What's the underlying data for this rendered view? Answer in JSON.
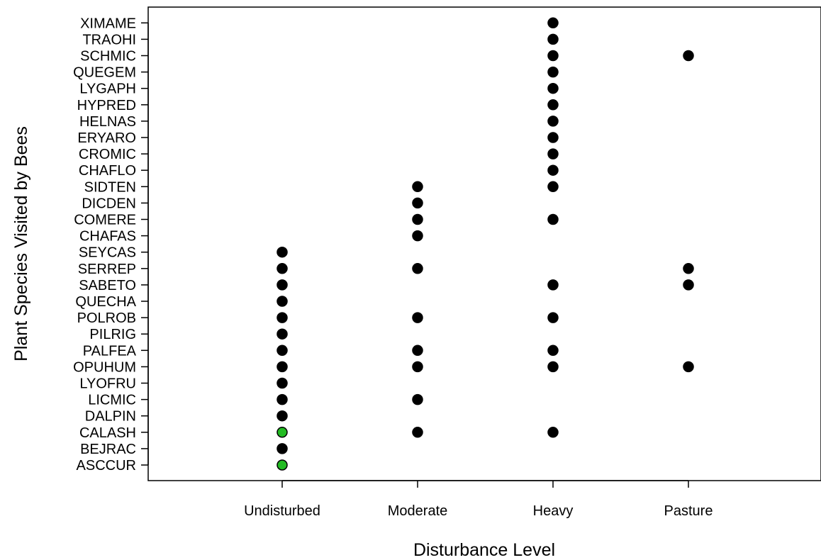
{
  "chart_data": {
    "type": "scatter",
    "title": "",
    "xlabel": "Disturbance Level",
    "ylabel": "Plant Species Visited by Bees",
    "x_categories": [
      "Undisturbed",
      "Moderate",
      "Heavy",
      "Pasture"
    ],
    "y_categories": [
      "ASCCUR",
      "BEJRAC",
      "CALASH",
      "DALPIN",
      "LICMIC",
      "LYOFRU",
      "OPUHUM",
      "PALFEA",
      "PILRIG",
      "POLROB",
      "QUECHA",
      "SABETO",
      "SERREP",
      "SEYCAS",
      "CHAFAS",
      "COMERE",
      "DICDEN",
      "SIDTEN",
      "CHAFLO",
      "CROMIC",
      "ERYARO",
      "HELNAS",
      "HYPRED",
      "LYGAPH",
      "QUEGEM",
      "SCHMIC",
      "TRAOHI",
      "XIMAME"
    ],
    "colors": {
      "default": "#000000",
      "highlight": "#22bb22"
    },
    "grid": false,
    "legend": "none",
    "points": [
      {
        "x": "Undisturbed",
        "y": "ASCCUR",
        "color": "highlight"
      },
      {
        "x": "Undisturbed",
        "y": "BEJRAC",
        "color": "default"
      },
      {
        "x": "Undisturbed",
        "y": "CALASH",
        "color": "highlight"
      },
      {
        "x": "Undisturbed",
        "y": "DALPIN",
        "color": "default"
      },
      {
        "x": "Undisturbed",
        "y": "LICMIC",
        "color": "default"
      },
      {
        "x": "Undisturbed",
        "y": "LYOFRU",
        "color": "default"
      },
      {
        "x": "Undisturbed",
        "y": "OPUHUM",
        "color": "default"
      },
      {
        "x": "Undisturbed",
        "y": "PALFEA",
        "color": "default"
      },
      {
        "x": "Undisturbed",
        "y": "PILRIG",
        "color": "default"
      },
      {
        "x": "Undisturbed",
        "y": "POLROB",
        "color": "default"
      },
      {
        "x": "Undisturbed",
        "y": "QUECHA",
        "color": "default"
      },
      {
        "x": "Undisturbed",
        "y": "SABETO",
        "color": "default"
      },
      {
        "x": "Undisturbed",
        "y": "SERREP",
        "color": "default"
      },
      {
        "x": "Undisturbed",
        "y": "SEYCAS",
        "color": "default"
      },
      {
        "x": "Moderate",
        "y": "CALASH",
        "color": "default"
      },
      {
        "x": "Moderate",
        "y": "LICMIC",
        "color": "default"
      },
      {
        "x": "Moderate",
        "y": "OPUHUM",
        "color": "default"
      },
      {
        "x": "Moderate",
        "y": "PALFEA",
        "color": "default"
      },
      {
        "x": "Moderate",
        "y": "POLROB",
        "color": "default"
      },
      {
        "x": "Moderate",
        "y": "SERREP",
        "color": "default"
      },
      {
        "x": "Moderate",
        "y": "CHAFAS",
        "color": "default"
      },
      {
        "x": "Moderate",
        "y": "COMERE",
        "color": "default"
      },
      {
        "x": "Moderate",
        "y": "DICDEN",
        "color": "default"
      },
      {
        "x": "Moderate",
        "y": "SIDTEN",
        "color": "default"
      },
      {
        "x": "Heavy",
        "y": "CALASH",
        "color": "default"
      },
      {
        "x": "Heavy",
        "y": "OPUHUM",
        "color": "default"
      },
      {
        "x": "Heavy",
        "y": "PALFEA",
        "color": "default"
      },
      {
        "x": "Heavy",
        "y": "POLROB",
        "color": "default"
      },
      {
        "x": "Heavy",
        "y": "SABETO",
        "color": "default"
      },
      {
        "x": "Heavy",
        "y": "COMERE",
        "color": "default"
      },
      {
        "x": "Heavy",
        "y": "SIDTEN",
        "color": "default"
      },
      {
        "x": "Heavy",
        "y": "CHAFLO",
        "color": "default"
      },
      {
        "x": "Heavy",
        "y": "CROMIC",
        "color": "default"
      },
      {
        "x": "Heavy",
        "y": "ERYARO",
        "color": "default"
      },
      {
        "x": "Heavy",
        "y": "HELNAS",
        "color": "default"
      },
      {
        "x": "Heavy",
        "y": "HYPRED",
        "color": "default"
      },
      {
        "x": "Heavy",
        "y": "LYGAPH",
        "color": "default"
      },
      {
        "x": "Heavy",
        "y": "QUEGEM",
        "color": "default"
      },
      {
        "x": "Heavy",
        "y": "SCHMIC",
        "color": "default"
      },
      {
        "x": "Heavy",
        "y": "TRAOHI",
        "color": "default"
      },
      {
        "x": "Heavy",
        "y": "XIMAME",
        "color": "default"
      },
      {
        "x": "Pasture",
        "y": "OPUHUM",
        "color": "default"
      },
      {
        "x": "Pasture",
        "y": "SABETO",
        "color": "default"
      },
      {
        "x": "Pasture",
        "y": "SERREP",
        "color": "default"
      },
      {
        "x": "Pasture",
        "y": "SCHMIC",
        "color": "default"
      }
    ]
  }
}
